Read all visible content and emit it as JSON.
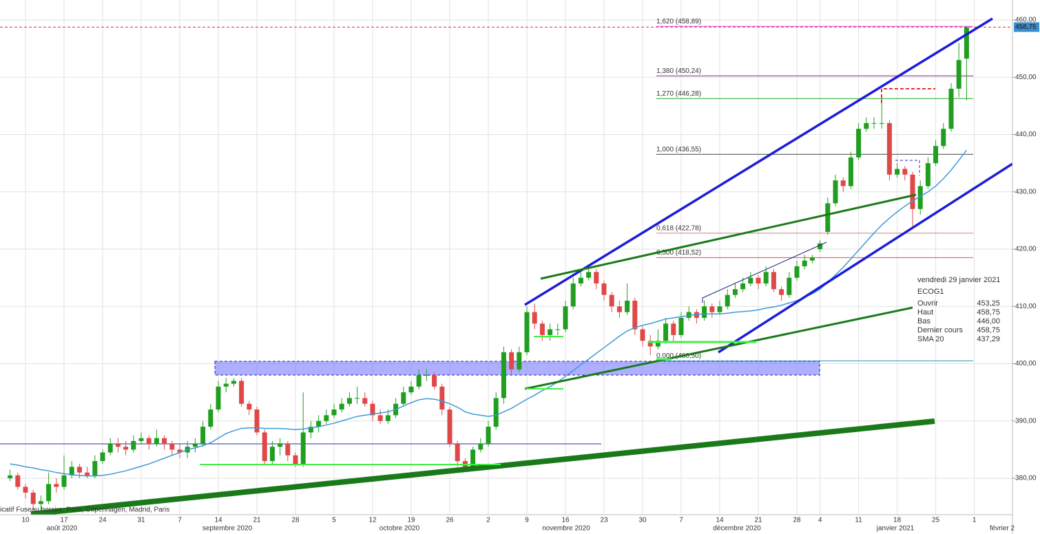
{
  "chart_data": {
    "type": "candlestick",
    "symbol": "ECOG1",
    "ylim": [
      373,
      461.5
    ],
    "yticks": [
      {
        "value": 380,
        "label": "380,00"
      },
      {
        "value": 390,
        "label": "390,00"
      },
      {
        "value": 400,
        "label": "400,00"
      },
      {
        "value": 410,
        "label": "410,00"
      },
      {
        "value": 420,
        "label": "420,00"
      },
      {
        "value": 430,
        "label": "430,00"
      },
      {
        "value": 440,
        "label": "440,00"
      },
      {
        "value": 450,
        "label": "450,00"
      },
      {
        "value": 460,
        "label": "460,00"
      }
    ],
    "grid": true,
    "x_day_labels": [
      "10",
      "17",
      "24",
      "31",
      "7",
      "14",
      "21",
      "28",
      "5",
      "12",
      "19",
      "26",
      "2",
      "9",
      "16",
      "23",
      "30",
      "7",
      "14",
      "21",
      "28",
      "4",
      "11",
      "18",
      "25",
      "1"
    ],
    "x_month_labels": [
      "août 2020",
      "septembre 2020",
      "octobre 2020",
      "novembre 2020",
      "décembre 2020",
      "janvier 2021",
      "février 2"
    ],
    "up_color": "#1f9e1f",
    "down_color": "#e04848",
    "open": [
      380,
      380.5,
      378.5,
      377.5,
      375.5,
      376,
      379,
      378.5,
      380.5,
      382,
      381,
      380.5,
      383,
      384.5,
      386,
      385.5,
      385,
      386.5,
      387,
      386,
      387,
      386,
      385,
      384.5,
      385.5,
      386,
      389,
      392,
      396,
      396.5,
      397,
      393,
      392,
      388,
      383,
      385.5,
      386,
      384,
      382.5,
      388,
      389,
      390,
      391,
      392,
      393,
      394,
      394,
      393,
      391,
      390,
      391,
      393,
      395,
      396,
      398,
      398,
      396,
      392,
      386,
      383,
      382,
      385,
      386,
      389,
      394,
      402,
      399,
      402,
      409,
      407,
      405,
      406,
      406,
      410,
      414,
      415,
      416,
      414,
      412,
      410,
      409,
      411,
      406,
      404,
      403,
      404,
      407,
      405,
      408,
      409,
      408,
      410,
      409,
      410,
      412,
      413,
      414,
      415,
      414,
      416,
      413,
      412,
      415,
      417,
      418,
      420,
      423,
      428,
      432,
      431,
      436,
      441,
      442,
      442,
      442,
      433,
      434,
      433,
      427,
      431,
      435,
      438,
      441,
      448,
      453.25
    ],
    "high": [
      381.5,
      381,
      379,
      378,
      377,
      381,
      380,
      384,
      383,
      382.5,
      382,
      384,
      385,
      387,
      387,
      386.5,
      387.5,
      388,
      387.5,
      388.5,
      387.5,
      386.5,
      386,
      386.5,
      387,
      390,
      393,
      397,
      397.5,
      397.5,
      397.5,
      393.5,
      392.5,
      388.5,
      386.5,
      387,
      386.5,
      384.5,
      395,
      390,
      391,
      392,
      393,
      394,
      395,
      396,
      395,
      393.5,
      392,
      392,
      394,
      396,
      397,
      399,
      399,
      398.5,
      396.5,
      392.5,
      386.5,
      383.5,
      385.5,
      387,
      390,
      395,
      403,
      402.5,
      403,
      410,
      410.5,
      407.5,
      407,
      407,
      411,
      415,
      416,
      417,
      416.5,
      414.5,
      412.5,
      411,
      414,
      411.5,
      406.5,
      405,
      406,
      408,
      407.5,
      409,
      410,
      409.5,
      411,
      410.5,
      411,
      413,
      414,
      415,
      416,
      415.5,
      417,
      416.5,
      413.5,
      416,
      418,
      419,
      419,
      421.5,
      429,
      433,
      432.5,
      437,
      442,
      443,
      443,
      447,
      442.5,
      435,
      434.5,
      433.5,
      432,
      436,
      439,
      442,
      449,
      456,
      458.75
    ],
    "low": [
      379.5,
      378,
      376.5,
      374.5,
      374,
      375.5,
      377.5,
      378,
      380,
      380,
      380,
      380,
      382.5,
      384,
      384.5,
      384,
      384.5,
      386,
      385,
      385.5,
      385,
      384,
      383.5,
      383.5,
      384.5,
      385.5,
      388.5,
      391.5,
      395,
      396,
      392.5,
      391,
      387.5,
      382.5,
      382.5,
      384,
      383,
      382,
      382,
      387,
      388,
      389.5,
      390.5,
      391.5,
      392.5,
      393,
      392.5,
      390,
      389.5,
      389.5,
      390.5,
      392.5,
      394.5,
      395.5,
      397,
      395.5,
      391,
      385.5,
      382,
      381.5,
      381.5,
      384.5,
      385.5,
      388.5,
      393,
      398,
      398.5,
      401.5,
      406,
      404,
      404,
      405,
      405.5,
      409.5,
      413.5,
      414.5,
      413,
      411,
      409,
      408,
      408.5,
      405,
      403,
      401.5,
      402.5,
      403.5,
      404,
      404.5,
      407.5,
      407,
      407.5,
      408,
      408.5,
      409.5,
      411.5,
      412.5,
      413.5,
      413,
      413.5,
      412.5,
      411,
      411.5,
      414.5,
      416.5,
      417.5,
      419.5,
      422.5,
      427.5,
      430,
      430.5,
      435.5,
      440.5,
      441,
      441,
      432,
      432.5,
      432,
      424,
      426,
      430.5,
      434.5,
      437.5,
      440.5,
      446.5,
      446
    ],
    "close": [
      380.5,
      378.5,
      377.5,
      375.5,
      376,
      379,
      378.5,
      380.5,
      382,
      381,
      380.5,
      383,
      384.5,
      386,
      385.5,
      385,
      386.5,
      387,
      386,
      387,
      386,
      385,
      384.5,
      385.5,
      386,
      389,
      392,
      396,
      396.5,
      397,
      393,
      392,
      388,
      383,
      385.5,
      386,
      384,
      382.5,
      388,
      389,
      390,
      391,
      392,
      393,
      394,
      394,
      393,
      391,
      390,
      391,
      393,
      395,
      396,
      398,
      398,
      396,
      392,
      386,
      383,
      382,
      385,
      386,
      389,
      394,
      402,
      399,
      402,
      409,
      407,
      405,
      406,
      406,
      410,
      414,
      415,
      416,
      414,
      412,
      410,
      409,
      411,
      406,
      404,
      403,
      404,
      407,
      405,
      408,
      409,
      408,
      410,
      409,
      410,
      412,
      413,
      414,
      415,
      414,
      416,
      413,
      412,
      415,
      417,
      418,
      418.5,
      421,
      428,
      432,
      431,
      436,
      441,
      442,
      442,
      442,
      433,
      434,
      433,
      427,
      431,
      435,
      438,
      441,
      448,
      453,
      458.75
    ],
    "sma": {
      "name": "SMA 20",
      "color": "#3a9ad9",
      "value_label": "437,29",
      "values": [
        382.5,
        382.3,
        382,
        381.8,
        381.5,
        381.3,
        381,
        380.8,
        380.6,
        380.5,
        380.4,
        380.4,
        380.5,
        380.7,
        381,
        381.3,
        381.7,
        382.1,
        382.5,
        383,
        383.5,
        384,
        384.5,
        385,
        385.3,
        385.7,
        386.2,
        387,
        387.8,
        388.3,
        388.7,
        388.8,
        388.8,
        388.7,
        388.7,
        388.7,
        388.6,
        388.5,
        388.6,
        388.8,
        389,
        389.3,
        389.6,
        390,
        390.4,
        390.8,
        391,
        391.2,
        391.4,
        391.6,
        392,
        392.6,
        393.2,
        393.7,
        393.9,
        393.8,
        393.5,
        393,
        392.4,
        391.6,
        391.2,
        391,
        390.8,
        391,
        391.6,
        392.2,
        393,
        393.8,
        394.5,
        395.3,
        396,
        396.8,
        397.8,
        398.8,
        399.8,
        400.8,
        401.8,
        402.8,
        403.8,
        404.8,
        405.7,
        406.3,
        406.7,
        407,
        407.4,
        407.8,
        408,
        408.2,
        408.4,
        408.6,
        408.7,
        408.7,
        408.7,
        408.8,
        409,
        409.1,
        409.2,
        409.4,
        409.7,
        409.9,
        410.2,
        410.6,
        411,
        411.6,
        412.2,
        413,
        414.2,
        415.5,
        416.8,
        418.3,
        419.8,
        421.3,
        422.8,
        424.2,
        425.4,
        426.5,
        427.5,
        428.4,
        429.2,
        430,
        431,
        432.3,
        433.8,
        435.5,
        437.29
      ]
    },
    "levels": [
      {
        "label": "1,620 (458,89)",
        "value": 458.89,
        "color": "#e040e0"
      },
      {
        "label": "1,380 (450,24)",
        "value": 450.24,
        "color": "#8a1a8a"
      },
      {
        "label": "1,270 (446,28)",
        "value": 446.28,
        "color": "#1aa81a"
      },
      {
        "label": "1,000 (436,55)",
        "value": 436.55,
        "color": "#404040"
      },
      {
        "label": "0,618 (422,78)",
        "value": 422.78,
        "color": "#c88080"
      },
      {
        "label": "0,500 (418,52)",
        "value": 418.52,
        "color": "#e05050"
      },
      {
        "label": "0,000 (400,50)",
        "value": 400.5,
        "color": "#2a90c0"
      }
    ],
    "last_price": {
      "value": 458.75,
      "label": "458,75",
      "color": "#e03030"
    },
    "info_box": {
      "date": "vendredi 29 janvier 2021",
      "symbol": "ECOG1",
      "rows": [
        [
          "Ouvrir",
          "453,25"
        ],
        [
          "Haut",
          "458,75"
        ],
        [
          "Bas",
          "446,00"
        ],
        [
          "Dernier cours",
          "458,75"
        ]
      ]
    },
    "footnote": "icatif   Fuseau horaire: Paris, Copenhagen, Madrid, Paris"
  }
}
